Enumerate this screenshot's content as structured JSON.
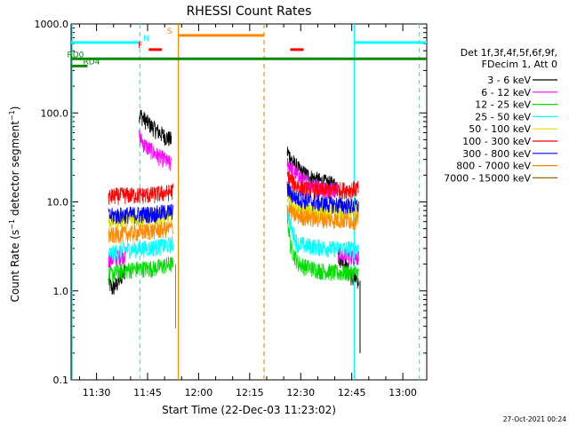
{
  "chart_data": {
    "type": "line",
    "title": "RHESSI Count Rates",
    "xlabel": "Start Time (22-Dec-03 11:23:02)",
    "ylabel_main": "Count Rate (s",
    "ylabel_sup1": "−1",
    "ylabel_mid": " detector segment",
    "ylabel_sup2": "−1",
    "ylabel_end": ")",
    "yscale": "log",
    "ylim": [
      0.1,
      1000
    ],
    "xlim_minutes": [
      -0.5,
      104
    ],
    "yticks": [
      {
        "value": 1000,
        "label": "1000.0"
      },
      {
        "value": 100,
        "label": "100.0"
      },
      {
        "value": 10,
        "label": "10.0"
      },
      {
        "value": 1,
        "label": "1.0"
      },
      {
        "value": 0.1,
        "label": "0.1"
      }
    ],
    "xticks": [
      {
        "minutes": 6.97,
        "label": "11:30"
      },
      {
        "minutes": 21.97,
        "label": "11:45"
      },
      {
        "minutes": 36.97,
        "label": "12:00"
      },
      {
        "minutes": 51.97,
        "label": "12:15"
      },
      {
        "minutes": 66.97,
        "label": "12:30"
      },
      {
        "minutes": 81.97,
        "label": "12:45"
      },
      {
        "minutes": 96.97,
        "label": "13:00"
      }
    ],
    "legend_header": [
      "Det 1f,3f,4f,5f,6f,9f,",
      "FDecim 1, Att 0"
    ],
    "series": [
      {
        "name": "3 - 6 keV",
        "color": "#000000",
        "seg1": [
          [
            10.5,
            1.3
          ],
          [
            11.5,
            1.05
          ],
          [
            13,
            1.2
          ],
          [
            14.5,
            1.5
          ],
          [
            15.5,
            1.8
          ]
        ],
        "seg2": [
          [
            19.5,
            100
          ],
          [
            21,
            85
          ],
          [
            23,
            72
          ],
          [
            25,
            62
          ],
          [
            27,
            55
          ],
          [
            29,
            50
          ]
        ],
        "seg3": [
          [
            63,
            37
          ],
          [
            65,
            27
          ],
          [
            67,
            22
          ],
          [
            70,
            19
          ],
          [
            73,
            17
          ],
          [
            76,
            16
          ],
          [
            78,
            15.5
          ]
        ],
        "seg4": [
          [
            78,
            2.5
          ],
          [
            80,
            2
          ],
          [
            82,
            1.4
          ],
          [
            84,
            1.25
          ]
        ]
      },
      {
        "name": "6 - 12 keV",
        "color": "#ff00ff",
        "seg1": [
          [
            10.5,
            2.2
          ],
          [
            13,
            2.4
          ],
          [
            15.5,
            2.6
          ]
        ],
        "seg2": [
          [
            19.5,
            55
          ],
          [
            21,
            44
          ],
          [
            23,
            38
          ],
          [
            25,
            33
          ],
          [
            27,
            30
          ],
          [
            29,
            26
          ]
        ],
        "seg3": [
          [
            63,
            28
          ],
          [
            65,
            22
          ],
          [
            67,
            18
          ],
          [
            70,
            16
          ],
          [
            73,
            14.5
          ],
          [
            76,
            14
          ],
          [
            78,
            14
          ]
        ],
        "seg4": [
          [
            78,
            2.6
          ],
          [
            81,
            2.5
          ],
          [
            84,
            2.4
          ]
        ]
      },
      {
        "name": "12 - 25 keV",
        "color": "#00dd00",
        "seg1": [
          [
            10.5,
            1.5
          ],
          [
            15,
            1.7
          ],
          [
            20,
            1.8
          ],
          [
            24,
            1.8
          ],
          [
            28,
            2.0
          ],
          [
            29.5,
            2.0
          ]
        ],
        "seg2": [
          [
            63,
            7
          ],
          [
            64,
            3.2
          ],
          [
            66,
            2.1
          ],
          [
            68,
            1.9
          ],
          [
            73,
            1.7
          ],
          [
            78,
            1.6
          ],
          [
            84,
            1.6
          ]
        ]
      },
      {
        "name": "25 - 50 keV",
        "color": "#00ffff",
        "seg1": [
          [
            10.5,
            2.6
          ],
          [
            15,
            2.9
          ],
          [
            20,
            3.0
          ],
          [
            24,
            3.1
          ],
          [
            28,
            3.3
          ],
          [
            29.5,
            3.4
          ]
        ],
        "seg2": [
          [
            63,
            9
          ],
          [
            64,
            5.2
          ],
          [
            66,
            3.4
          ],
          [
            70,
            3.2
          ],
          [
            76,
            3.0
          ],
          [
            84,
            3.0
          ]
        ]
      },
      {
        "name": "50 - 100 keV",
        "color": "#dddd00",
        "seg1": [
          [
            10.5,
            6.2
          ],
          [
            15,
            6.4
          ],
          [
            20,
            6.5
          ],
          [
            24,
            6.6
          ],
          [
            28,
            6.9
          ],
          [
            29.5,
            7.0
          ]
        ],
        "seg2": [
          [
            63,
            12
          ],
          [
            65,
            8.5
          ],
          [
            68,
            8.0
          ],
          [
            72,
            7.8
          ],
          [
            78,
            7.8
          ],
          [
            84,
            7.8
          ]
        ]
      },
      {
        "name": "100 - 300 keV",
        "color": "#ff0000",
        "seg1": [
          [
            10.5,
            11.5
          ],
          [
            15,
            12
          ],
          [
            20,
            12
          ],
          [
            24,
            12.2
          ],
          [
            28,
            12.8
          ],
          [
            29.5,
            13.5
          ]
        ],
        "seg2": [
          [
            63,
            20
          ],
          [
            65,
            16
          ],
          [
            67,
            14.5
          ],
          [
            70,
            13.5
          ],
          [
            75,
            13.5
          ],
          [
            80,
            13.8
          ],
          [
            84,
            14.2
          ]
        ]
      },
      {
        "name": "300 - 800 keV",
        "color": "#0000ff",
        "seg1": [
          [
            10.5,
            7.0
          ],
          [
            15,
            7.2
          ],
          [
            20,
            7.3
          ],
          [
            24,
            7.4
          ],
          [
            28,
            7.8
          ],
          [
            29.5,
            8.0
          ]
        ],
        "seg2": [
          [
            63,
            14
          ],
          [
            65,
            11.5
          ],
          [
            68,
            10.5
          ],
          [
            72,
            9.8
          ],
          [
            78,
            9.3
          ],
          [
            84,
            9.0
          ]
        ]
      },
      {
        "name": "800 - 7000 keV",
        "color": "#ff8800",
        "seg1": [
          [
            10.5,
            4.2
          ],
          [
            15,
            4.4
          ],
          [
            20,
            4.6
          ],
          [
            24,
            4.8
          ],
          [
            28,
            5.0
          ],
          [
            29.5,
            5.2
          ]
        ],
        "seg2": [
          [
            63,
            8.5
          ],
          [
            65,
            7.2
          ],
          [
            68,
            6.8
          ],
          [
            72,
            6.5
          ],
          [
            78,
            6.3
          ],
          [
            84,
            6.2
          ]
        ]
      },
      {
        "name": "7000 - 15000 keV",
        "color": "#996600",
        "seg1": [],
        "seg2": []
      }
    ],
    "spike_lines": [
      {
        "color": "#00dd00",
        "minutes": 30.2,
        "from": 0.38,
        "to": 2.0
      },
      {
        "color": "#000000",
        "minutes": 84.4,
        "from": 0.2,
        "to": 1.3
      }
    ],
    "flag_bars": [
      {
        "label": "N",
        "label_color": "#00ffff",
        "color": "#00ffff",
        "y_frac": 0.052,
        "segments": [
          [
            -0.5,
            19.7
          ],
          [
            82.7,
            104
          ]
        ],
        "label_minutes": 21.6
      },
      {
        "label": "S",
        "label_color": "#ff8800",
        "color": "#ff8800",
        "y_frac": 0.032,
        "segments": [
          [
            31,
            56.2
          ]
        ],
        "label_minutes": 28.4
      },
      {
        "label": "F",
        "label_color": "#ff0000",
        "color": "#ff0000",
        "y_frac": 0.072,
        "segments": [
          [
            22.3,
            26.2
          ],
          [
            63.9,
            67.8
          ]
        ],
        "label_minutes": 19.8
      },
      {
        "label": "RD0",
        "label_color": "#008800",
        "color": "#008800",
        "y_frac": 0.098,
        "segments": [
          [
            -0.5,
            104
          ]
        ],
        "label_minutes": 0.8
      },
      {
        "label": "RD4",
        "label_color": "#008800",
        "color": "#008800",
        "y_frac": 0.118,
        "segments": [
          [
            -0.5,
            4.3
          ]
        ],
        "label_minutes": 5.5
      }
    ],
    "vertical_markers": [
      {
        "minutes": -0.2,
        "color": "#00ffff",
        "style": "solid"
      },
      {
        "minutes": 19.7,
        "color": "#00ffff",
        "style": "dashed"
      },
      {
        "minutes": 31.0,
        "color": "#ff8800",
        "style": "solid"
      },
      {
        "minutes": 56.2,
        "color": "#ff8800",
        "style": "dashed"
      },
      {
        "minutes": 82.7,
        "color": "#00ffff",
        "style": "solid"
      },
      {
        "minutes": 101.8,
        "color": "#00ffff",
        "style": "dashed"
      }
    ],
    "footer_date": "27-Oct-2021 00:24"
  }
}
